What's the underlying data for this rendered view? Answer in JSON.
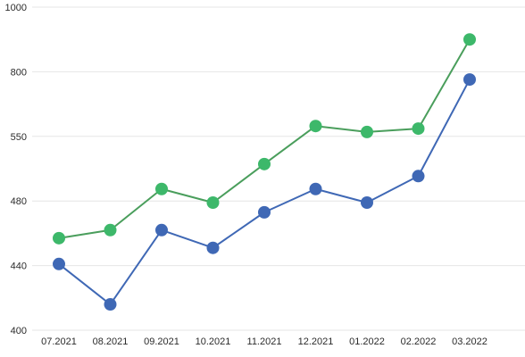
{
  "chart_data": {
    "type": "line",
    "categories": [
      "07.2021",
      "08.2021",
      "09.2021",
      "10.2021",
      "11.2021",
      "12.2021",
      "01.2022",
      "02.2022",
      "03.2022"
    ],
    "y_ticks": [
      400,
      440,
      480,
      550,
      800,
      1000
    ],
    "y_scale": "piecewise (equal spacing between ticks)",
    "ylim": [
      400,
      1000
    ],
    "grid": "horizontal",
    "legend": "none",
    "series": [
      {
        "color": "#4a9e5c",
        "marker_color": "#3db86a",
        "values": [
          457,
          462,
          493,
          479,
          520,
          590,
          567,
          580,
          900
        ]
      },
      {
        "color": "#3f68b5",
        "marker_color": "#3f68b5",
        "values": [
          441,
          416,
          462,
          451,
          473,
          493,
          479,
          507,
          770
        ]
      }
    ]
  }
}
